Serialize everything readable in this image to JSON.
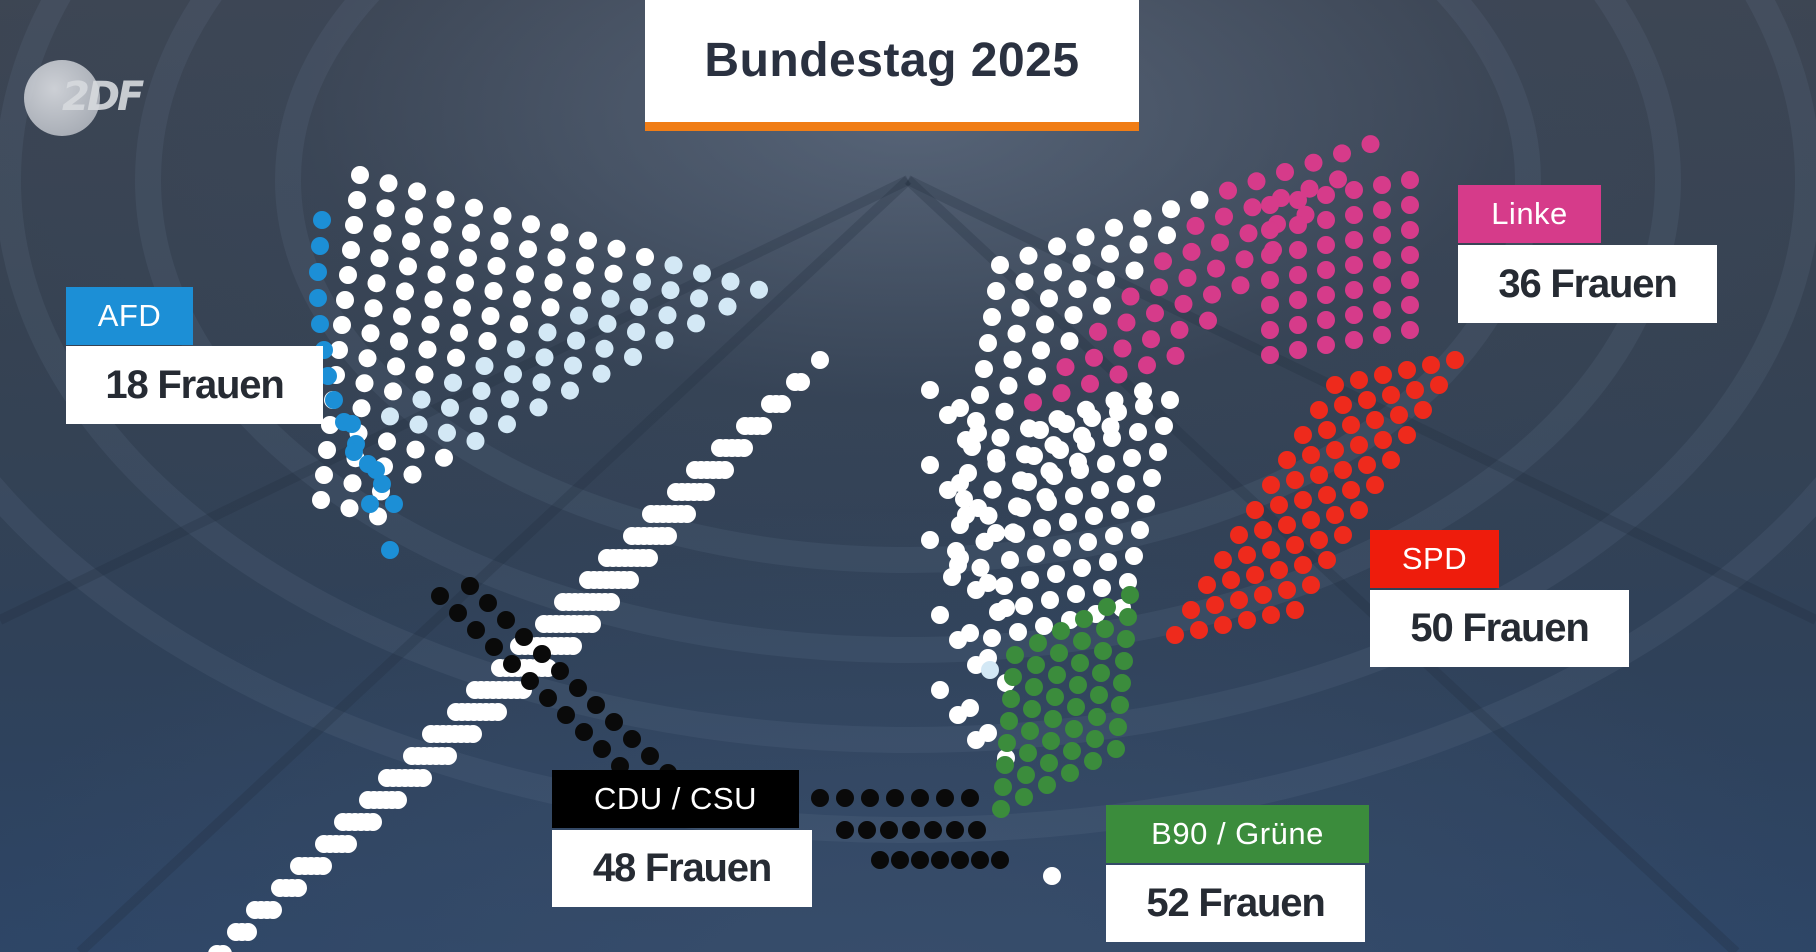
{
  "title": "Bundestag 2025",
  "logo": {
    "text": "2DF"
  },
  "colors": {
    "title_underline": "#f07d16",
    "seat_default": "#ffffff",
    "AFD": "#1c8fd6",
    "AFD_light": "#d3e8f5",
    "CDU_CSU": "#0a0a0a",
    "B90_Gruene": "#3b8c3c",
    "SPD": "#ee2a1c",
    "Linke": "#d63b8a"
  },
  "parties": [
    {
      "key": "afd",
      "label": "AFD",
      "count_text": "18 Frauen",
      "label_color": "#1c8fd6"
    },
    {
      "key": "linke",
      "label": "Linke",
      "count_text": "36 Frauen",
      "label_color": "#d63b8a"
    },
    {
      "key": "spd",
      "label": "SPD",
      "count_text": "50 Frauen",
      "label_color": "#ee1c0c"
    },
    {
      "key": "cdu",
      "label": "CDU / CSU",
      "count_text": "48 Frauen",
      "label_color": "#000000"
    },
    {
      "key": "gruene",
      "label": "B90 / Grüne",
      "count_text": "52 Frauen",
      "label_color": "#3b8c3c"
    }
  ]
}
